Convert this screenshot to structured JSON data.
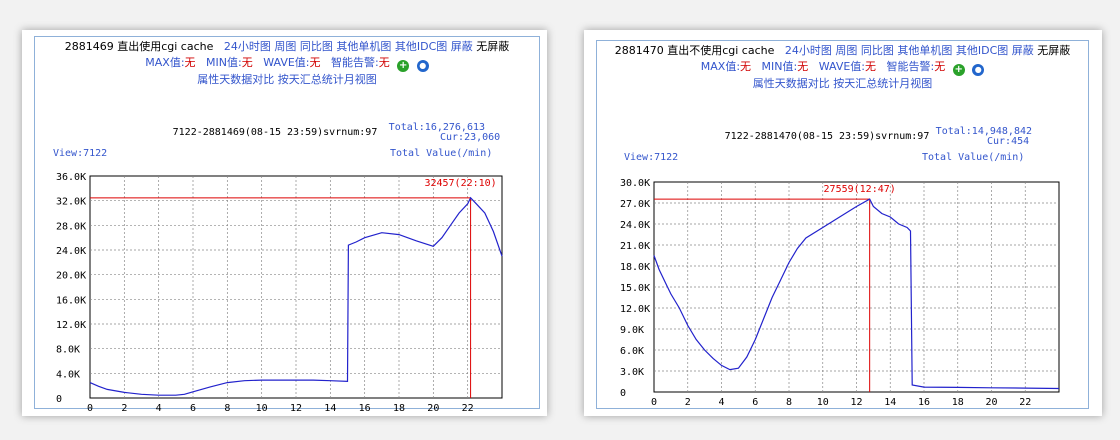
{
  "panels": [
    {
      "header": {
        "id_text": "2881469 直出使用cgi cache",
        "links1": [
          "24小时图",
          "周图",
          "同比图",
          "其他单机图",
          "其他IDC图",
          "屏蔽"
        ],
        "no_shield": "无屏蔽",
        "max_label": "MAX值:",
        "max_val": "无",
        "min_label": "MIN值:",
        "min_val": "无",
        "wave_label": "WAVE值:",
        "wave_val": "无",
        "alarm_label": "智能告警:",
        "alarm_val": "无",
        "links3": [
          "属性天数据对比",
          "按天汇总统计月视图"
        ]
      },
      "chart_info": {
        "center": "7122-2881469(08-15 23:59)svrnum:97",
        "total": "Total:16,276,613",
        "cur": "Cur:23,060",
        "view": "View:7122",
        "total_value": "Total Value(/min)",
        "peak_label": "32457(22:10)"
      }
    },
    {
      "header": {
        "id_text": "2881470 直出不使用cgi cache",
        "links1": [
          "24小时图",
          "周图",
          "同比图",
          "其他单机图",
          "其他IDC图",
          "屏蔽"
        ],
        "no_shield": "无屏蔽",
        "max_label": "MAX值:",
        "max_val": "无",
        "min_label": "MIN值:",
        "min_val": "无",
        "wave_label": "WAVE值:",
        "wave_val": "无",
        "alarm_label": "智能告警:",
        "alarm_val": "无",
        "links3": [
          "属性天数据对比",
          "按天汇总统计月视图"
        ]
      },
      "chart_info": {
        "center": "7122-2881470(08-15 23:59)svrnum:97",
        "total": "Total:14,948,842",
        "cur": "Cur:454",
        "view": "View:7122",
        "total_value": "Total Value(/min)",
        "peak_label": "27559(12:47)"
      }
    }
  ],
  "colors": {
    "line": "#2222cc",
    "marker": "#dd0000",
    "grid": "#888888",
    "link": "#3355cc"
  },
  "chart_data": [
    {
      "type": "line",
      "x_range": [
        0,
        24
      ],
      "x_ticks": [
        0,
        2,
        4,
        6,
        8,
        10,
        12,
        14,
        16,
        18,
        20,
        22
      ],
      "y_range": [
        0,
        36000
      ],
      "y_ticks": [
        "0",
        "4.0K",
        "8.0K",
        "12.0K",
        "16.0K",
        "20.0K",
        "24.0K",
        "28.0K",
        "32.0K",
        "36.0K"
      ],
      "y_tick_values": [
        0,
        4000,
        8000,
        12000,
        16000,
        20000,
        24000,
        28000,
        32000,
        36000
      ],
      "grid": true,
      "peak": {
        "x": 22.17,
        "y": 32457
      },
      "series": [
        {
          "x": [
            0,
            0.5,
            1,
            2,
            3,
            4,
            5,
            5.5,
            6,
            7,
            8,
            9,
            10,
            11,
            12,
            13,
            14,
            15,
            15.05,
            15.5,
            16,
            17,
            18,
            19,
            20,
            20.5,
            21,
            21.5,
            22,
            22.17,
            22.5,
            23,
            23.5,
            24
          ],
          "y": [
            2500,
            1900,
            1400,
            900,
            600,
            450,
            450,
            600,
            1000,
            1800,
            2500,
            2800,
            2900,
            2900,
            2900,
            2900,
            2800,
            2700,
            24800,
            25300,
            26000,
            26800,
            26500,
            25500,
            24600,
            26000,
            28000,
            30000,
            31500,
            32457,
            31500,
            30000,
            27000,
            23000
          ]
        }
      ]
    },
    {
      "type": "line",
      "x_range": [
        0,
        24
      ],
      "x_ticks": [
        0,
        2,
        4,
        6,
        8,
        10,
        12,
        14,
        16,
        18,
        20,
        22
      ],
      "y_range": [
        0,
        30000
      ],
      "y_ticks": [
        "0",
        "3.0K",
        "6.0K",
        "9.0K",
        "12.0K",
        "15.0K",
        "18.0K",
        "21.0K",
        "24.0K",
        "27.0K",
        "30.0K"
      ],
      "y_tick_values": [
        0,
        3000,
        6000,
        9000,
        12000,
        15000,
        18000,
        21000,
        24000,
        27000,
        30000
      ],
      "grid": true,
      "peak": {
        "x": 12.78,
        "y": 27559
      },
      "series": [
        {
          "x": [
            0,
            0.3,
            0.7,
            1,
            1.5,
            2,
            2.5,
            3,
            3.5,
            4,
            4.5,
            5,
            5.5,
            6,
            6.5,
            7,
            7.5,
            8,
            8.5,
            9,
            10,
            11,
            12,
            12.78,
            13,
            13.5,
            14,
            14.5,
            15,
            15.2,
            15.3,
            16,
            18,
            20,
            22,
            24
          ],
          "y": [
            19500,
            17500,
            15500,
            14000,
            12000,
            9500,
            7500,
            6000,
            4800,
            3800,
            3200,
            3400,
            5000,
            7500,
            10500,
            13500,
            16000,
            18500,
            20500,
            22000,
            23500,
            25000,
            26500,
            27559,
            26500,
            25500,
            25000,
            24000,
            23500,
            23000,
            1000,
            700,
            650,
            600,
            550,
            500
          ]
        }
      ]
    }
  ]
}
